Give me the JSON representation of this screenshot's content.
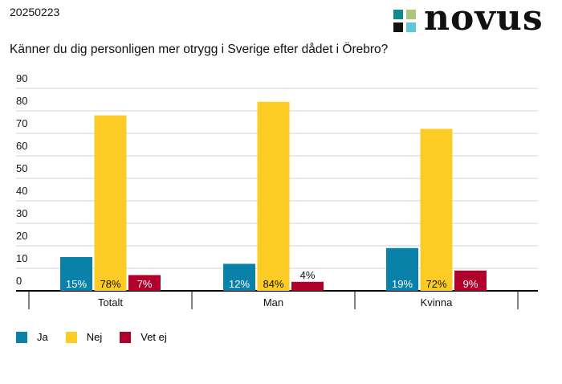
{
  "date": "20250223",
  "logo_text": "novus",
  "colors": {
    "Ja": "#0a81a9",
    "Nej": "#fccb24",
    "Vet ej": "#b1002c",
    "logo_teal": "#138a87",
    "logo_green": "#aac580",
    "logo_black": "#111111",
    "logo_blue": "#5ec7d3"
  },
  "chart_data": {
    "type": "bar",
    "title": "Känner du dig personligen mer otrygg i Sverige efter dådet i Örebro?",
    "categories": [
      "Totalt",
      "Man",
      "Kvinna"
    ],
    "series": [
      {
        "name": "Ja",
        "values": [
          15,
          12,
          19
        ],
        "labels": [
          "15%",
          "12%",
          "19%"
        ]
      },
      {
        "name": "Nej",
        "values": [
          78,
          84,
          72
        ],
        "labels": [
          "78%",
          "84%",
          "72%"
        ]
      },
      {
        "name": "Vet ej",
        "values": [
          7,
          4,
          9
        ],
        "labels": [
          "7%",
          "4%",
          "9%"
        ]
      }
    ],
    "yticks": [
      0,
      10,
      20,
      30,
      40,
      50,
      60,
      70,
      80,
      90
    ],
    "ylim": [
      0,
      90
    ],
    "grid": true,
    "legend_position": "bottom-left"
  }
}
